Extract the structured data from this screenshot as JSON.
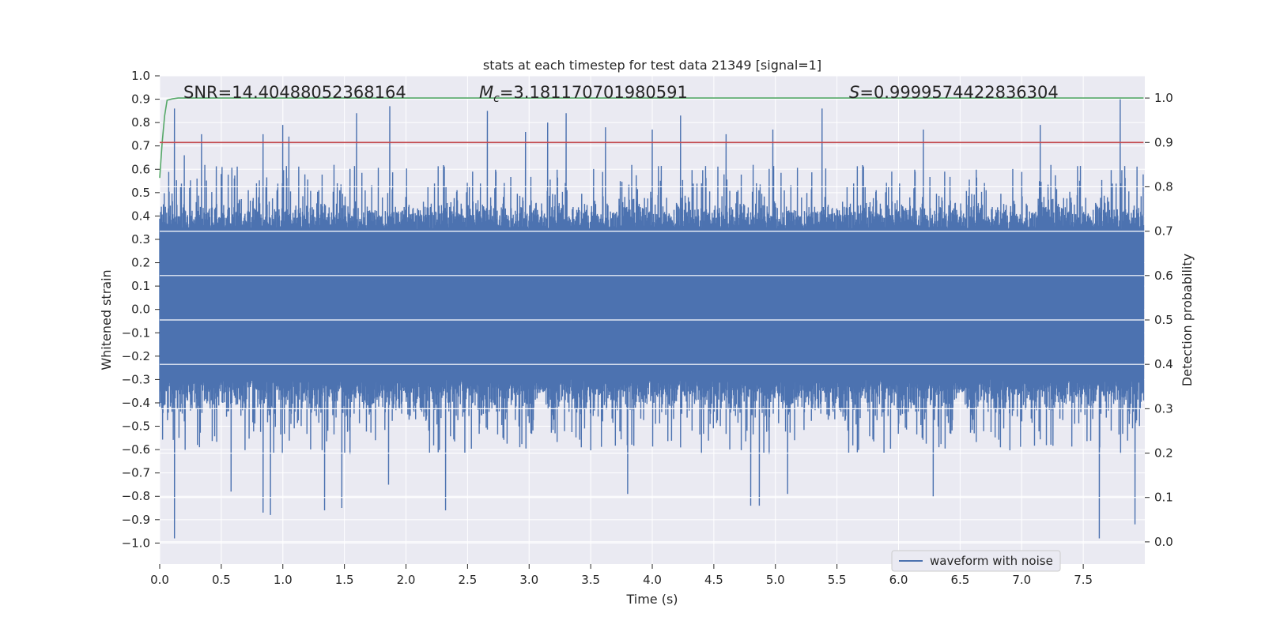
{
  "chart_data": {
    "type": "line",
    "title": "stats at each timestep for test data 21349 [signal=1]",
    "xlabel": "Time (s)",
    "ylabel_left": "Whitened strain",
    "ylabel_right": "Detection probability",
    "xlim": [
      0.0,
      8.0
    ],
    "ylim_left": [
      -1.09,
      1.0
    ],
    "ylim_right": [
      -0.05,
      1.05
    ],
    "xticks": [
      "0.0",
      "0.5",
      "1.0",
      "1.5",
      "2.0",
      "2.5",
      "3.0",
      "3.5",
      "4.0",
      "4.5",
      "5.0",
      "5.5",
      "6.0",
      "6.5",
      "7.0",
      "7.5"
    ],
    "yticks_left": [
      "1.0",
      "0.9",
      "0.8",
      "0.7",
      "0.6",
      "0.5",
      "0.4",
      "0.3",
      "0.2",
      "0.1",
      "0.0",
      "−0.1",
      "−0.2",
      "−0.3",
      "−0.4",
      "−0.5",
      "−0.6",
      "−0.7",
      "−0.8",
      "−0.9",
      "−1.0"
    ],
    "yticks_right": [
      "1.0",
      "0.9",
      "0.8",
      "0.7",
      "0.6",
      "0.5",
      "0.4",
      "0.3",
      "0.2",
      "0.1",
      "0.0"
    ],
    "grid": true,
    "legend_position": "lower-right",
    "annotations": {
      "snr": "SNR=14.40488052368164",
      "mc_symbol": "M",
      "mc_sub": "c",
      "mc_value": "=3.181170701980591",
      "s_symbol": "S",
      "s_value": "=0.9999574422836304"
    },
    "series": [
      {
        "name": "waveform with noise",
        "axis": "left",
        "color": "#4c72b0",
        "description": "whitened noisy strain, roughly between -1.0 and 0.9, sampled densely over 0-8 s",
        "envelope_peaks": [
          [
            0.03,
            0.45
          ],
          [
            0.12,
            0.86
          ],
          [
            0.2,
            0.66
          ],
          [
            0.34,
            0.75
          ],
          [
            0.5,
            0.58
          ],
          [
            0.84,
            0.75
          ],
          [
            1.0,
            0.79
          ],
          [
            1.05,
            0.74
          ],
          [
            1.6,
            0.84
          ],
          [
            1.87,
            0.87
          ],
          [
            2.66,
            0.85
          ],
          [
            2.97,
            0.76
          ],
          [
            3.15,
            0.8
          ],
          [
            3.3,
            0.84
          ],
          [
            3.62,
            0.78
          ],
          [
            4.0,
            0.77
          ],
          [
            4.23,
            0.83
          ],
          [
            4.6,
            0.75
          ],
          [
            4.98,
            0.77
          ],
          [
            5.38,
            0.86
          ],
          [
            6.2,
            0.77
          ],
          [
            7.15,
            0.79
          ],
          [
            7.8,
            0.9
          ]
        ],
        "envelope_troughs": [
          [
            0.12,
            -0.98
          ],
          [
            0.58,
            -0.78
          ],
          [
            0.84,
            -0.87
          ],
          [
            0.9,
            -0.88
          ],
          [
            1.34,
            -0.86
          ],
          [
            1.48,
            -0.85
          ],
          [
            1.86,
            -0.75
          ],
          [
            2.32,
            -0.86
          ],
          [
            3.8,
            -0.79
          ],
          [
            4.8,
            -0.84
          ],
          [
            4.87,
            -0.84
          ],
          [
            5.1,
            -0.79
          ],
          [
            6.28,
            -0.8
          ],
          [
            7.63,
            -0.98
          ],
          [
            7.92,
            -0.92
          ]
        ]
      },
      {
        "name": "",
        "axis": "right",
        "color": "#55a868",
        "x": [
          0.0,
          0.02,
          0.04,
          0.06,
          0.1,
          0.15,
          0.2,
          1.0,
          2.0,
          3.0,
          4.0,
          5.0,
          6.0,
          7.0,
          7.99
        ],
        "values": [
          0.82,
          0.9,
          0.96,
          0.995,
          0.998,
          1.0,
          1.0,
          1.0,
          1.0,
          1.0,
          1.0,
          1.0,
          1.0,
          1.0,
          1.0
        ]
      },
      {
        "name": "",
        "axis": "right",
        "color": "#c44e52",
        "x": [
          0.0,
          7.99
        ],
        "values": [
          0.9,
          0.9
        ]
      }
    ]
  }
}
